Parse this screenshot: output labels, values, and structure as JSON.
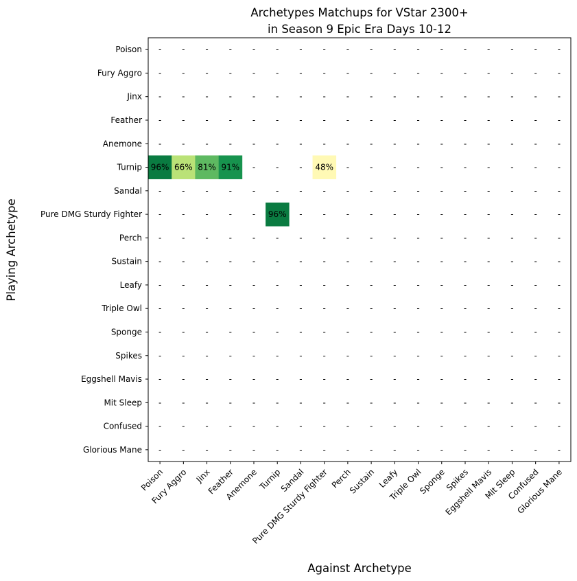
{
  "chart_data": {
    "type": "heatmap",
    "title_lines": [
      "Archetypes Matchups for VStar 2300+",
      "in Season 9 Epic Era Days 10-12"
    ],
    "xlabel": "Against Archetype",
    "ylabel": "Playing Archetype",
    "rows": [
      "Poison",
      "Fury Aggro",
      "Jinx",
      "Feather",
      "Anemone",
      "Turnip",
      "Sandal",
      "Pure DMG Sturdy Fighter",
      "Perch",
      "Sustain",
      "Leafy",
      "Triple Owl",
      "Sponge",
      "Spikes",
      "Eggshell Mavis",
      "Mit Sleep",
      "Confused",
      "Glorious Mane"
    ],
    "columns": [
      "Poison",
      "Fury Aggro",
      "Jinx",
      "Feather",
      "Anemone",
      "Turnip",
      "Sandal",
      "Pure DMG Sturdy Fighter",
      "Perch",
      "Sustain",
      "Leafy",
      "Triple Owl",
      "Sponge",
      "Spikes",
      "Eggshell Mavis",
      "Mit Sleep",
      "Confused",
      "Glorious Mane"
    ],
    "values": [
      [
        null,
        null,
        null,
        null,
        null,
        null,
        null,
        null,
        null,
        null,
        null,
        null,
        null,
        null,
        null,
        null,
        null,
        null
      ],
      [
        null,
        null,
        null,
        null,
        null,
        null,
        null,
        null,
        null,
        null,
        null,
        null,
        null,
        null,
        null,
        null,
        null,
        null
      ],
      [
        null,
        null,
        null,
        null,
        null,
        null,
        null,
        null,
        null,
        null,
        null,
        null,
        null,
        null,
        null,
        null,
        null,
        null
      ],
      [
        null,
        null,
        null,
        null,
        null,
        null,
        null,
        null,
        null,
        null,
        null,
        null,
        null,
        null,
        null,
        null,
        null,
        null
      ],
      [
        null,
        null,
        null,
        null,
        null,
        null,
        null,
        null,
        null,
        null,
        null,
        null,
        null,
        null,
        null,
        null,
        null,
        null
      ],
      [
        96,
        66,
        81,
        91,
        null,
        null,
        null,
        48,
        null,
        null,
        null,
        null,
        null,
        null,
        null,
        null,
        null,
        null
      ],
      [
        null,
        null,
        null,
        null,
        null,
        null,
        null,
        null,
        null,
        null,
        null,
        null,
        null,
        null,
        null,
        null,
        null,
        null
      ],
      [
        null,
        null,
        null,
        null,
        null,
        96,
        null,
        null,
        null,
        null,
        null,
        null,
        null,
        null,
        null,
        null,
        null,
        null
      ],
      [
        null,
        null,
        null,
        null,
        null,
        null,
        null,
        null,
        null,
        null,
        null,
        null,
        null,
        null,
        null,
        null,
        null,
        null
      ],
      [
        null,
        null,
        null,
        null,
        null,
        null,
        null,
        null,
        null,
        null,
        null,
        null,
        null,
        null,
        null,
        null,
        null,
        null
      ],
      [
        null,
        null,
        null,
        null,
        null,
        null,
        null,
        null,
        null,
        null,
        null,
        null,
        null,
        null,
        null,
        null,
        null,
        null
      ],
      [
        null,
        null,
        null,
        null,
        null,
        null,
        null,
        null,
        null,
        null,
        null,
        null,
        null,
        null,
        null,
        null,
        null,
        null
      ],
      [
        null,
        null,
        null,
        null,
        null,
        null,
        null,
        null,
        null,
        null,
        null,
        null,
        null,
        null,
        null,
        null,
        null,
        null
      ],
      [
        null,
        null,
        null,
        null,
        null,
        null,
        null,
        null,
        null,
        null,
        null,
        null,
        null,
        null,
        null,
        null,
        null,
        null
      ],
      [
        null,
        null,
        null,
        null,
        null,
        null,
        null,
        null,
        null,
        null,
        null,
        null,
        null,
        null,
        null,
        null,
        null,
        null
      ],
      [
        null,
        null,
        null,
        null,
        null,
        null,
        null,
        null,
        null,
        null,
        null,
        null,
        null,
        null,
        null,
        null,
        null,
        null
      ],
      [
        null,
        null,
        null,
        null,
        null,
        null,
        null,
        null,
        null,
        null,
        null,
        null,
        null,
        null,
        null,
        null,
        null,
        null
      ],
      [
        null,
        null,
        null,
        null,
        null,
        null,
        null,
        null,
        null,
        null,
        null,
        null,
        null,
        null,
        null,
        null,
        null,
        null
      ]
    ],
    "value_suffix": "%",
    "missing_text": "-",
    "colormap": "RdYlGn",
    "value_range": [
      0,
      100
    ]
  }
}
